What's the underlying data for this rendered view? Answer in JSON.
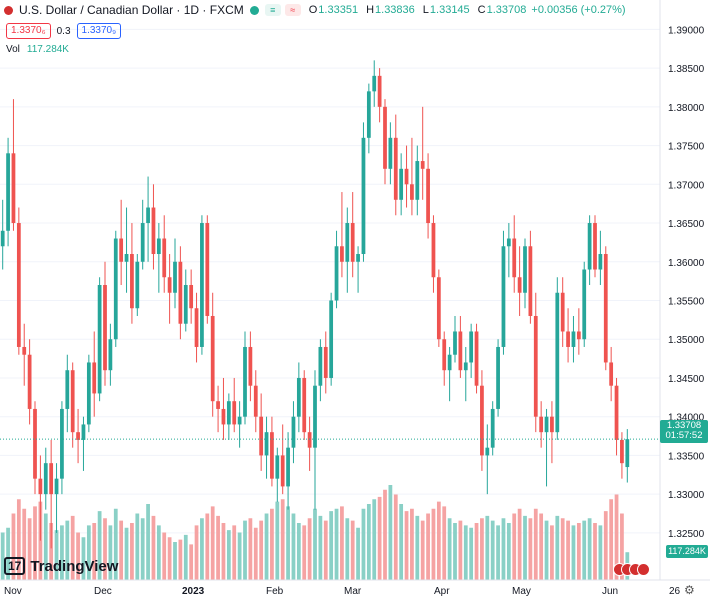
{
  "legend": {
    "title": "U.S. Dollar / Canadian Dollar · 1D · FXCM",
    "o_label": "O",
    "o_value": "1.33351",
    "h_label": "H",
    "h_value": "1.33836",
    "l_label": "L",
    "l_value": "1.33145",
    "c_label": "C",
    "c_value": "1.33708",
    "change": "+0.00356 (+0.27%)",
    "sell_price": "1.3370₆",
    "spread": "0.3",
    "buy_price": "1.3370₉",
    "vol_label": "Vol",
    "vol_value": "117.284K",
    "sell_chip": "≡",
    "buy_chip": "≈"
  },
  "price_axis": {
    "labels": [
      "1.39000",
      "1.38500",
      "1.38000",
      "1.37500",
      "1.37000",
      "1.36500",
      "1.36000",
      "1.35500",
      "1.35000",
      "1.34500",
      "1.34000",
      "1.33500",
      "1.33000",
      "1.32500"
    ],
    "current_price": "1.33708",
    "countdown": "01:57:52",
    "volume_tag": "117.284K"
  },
  "time_axis": {
    "labels": [
      "Nov",
      "Dec",
      "2023",
      "Feb",
      "Mar",
      "Apr",
      "May",
      "Jun",
      "26"
    ]
  },
  "branding": {
    "logo_mark": "17",
    "logo_text": "TradingView"
  },
  "colors": {
    "up": "#26a69a",
    "down": "#ef5350",
    "up_volume": "#8ad0c6",
    "down_volume": "#f5a3a3",
    "accent": "#22ab94"
  },
  "chart_data": {
    "type": "candlestick",
    "symbol": "USDCAD",
    "interval": "1D",
    "ylim": [
      1.3215,
      1.3925
    ],
    "candles": [
      [
        1.362,
        1.368,
        1.359,
        1.364,
        200
      ],
      [
        1.364,
        1.376,
        1.362,
        1.374,
        220
      ],
      [
        1.374,
        1.381,
        1.364,
        1.365,
        280
      ],
      [
        1.365,
        1.367,
        1.348,
        1.349,
        340
      ],
      [
        1.349,
        1.352,
        1.344,
        1.348,
        300
      ],
      [
        1.348,
        1.35,
        1.339,
        1.341,
        260
      ],
      [
        1.341,
        1.342,
        1.33,
        1.332,
        310
      ],
      [
        1.332,
        1.335,
        1.324,
        1.33,
        330
      ],
      [
        1.33,
        1.336,
        1.328,
        1.334,
        280
      ],
      [
        1.334,
        1.337,
        1.323,
        1.33,
        240
      ],
      [
        1.33,
        1.334,
        1.325,
        1.332,
        210
      ],
      [
        1.332,
        1.342,
        1.33,
        1.341,
        230
      ],
      [
        1.341,
        1.348,
        1.338,
        1.346,
        250
      ],
      [
        1.346,
        1.347,
        1.336,
        1.338,
        270
      ],
      [
        1.338,
        1.341,
        1.334,
        1.337,
        200
      ],
      [
        1.337,
        1.34,
        1.333,
        1.339,
        180
      ],
      [
        1.339,
        1.348,
        1.338,
        1.347,
        230
      ],
      [
        1.347,
        1.351,
        1.34,
        1.343,
        240
      ],
      [
        1.343,
        1.358,
        1.342,
        1.357,
        290
      ],
      [
        1.357,
        1.36,
        1.344,
        1.346,
        260
      ],
      [
        1.346,
        1.352,
        1.344,
        1.35,
        230
      ],
      [
        1.35,
        1.364,
        1.349,
        1.363,
        300
      ],
      [
        1.363,
        1.368,
        1.357,
        1.36,
        250
      ],
      [
        1.36,
        1.367,
        1.356,
        1.361,
        220
      ],
      [
        1.361,
        1.365,
        1.352,
        1.354,
        240
      ],
      [
        1.354,
        1.361,
        1.353,
        1.36,
        280
      ],
      [
        1.36,
        1.368,
        1.359,
        1.365,
        260
      ],
      [
        1.365,
        1.371,
        1.36,
        1.367,
        320
      ],
      [
        1.367,
        1.37,
        1.359,
        1.361,
        270
      ],
      [
        1.361,
        1.365,
        1.356,
        1.363,
        230
      ],
      [
        1.363,
        1.366,
        1.356,
        1.358,
        200
      ],
      [
        1.358,
        1.361,
        1.352,
        1.356,
        180
      ],
      [
        1.356,
        1.363,
        1.354,
        1.36,
        160
      ],
      [
        1.36,
        1.362,
        1.35,
        1.352,
        170
      ],
      [
        1.352,
        1.359,
        1.351,
        1.357,
        190
      ],
      [
        1.357,
        1.359,
        1.352,
        1.354,
        150
      ],
      [
        1.354,
        1.356,
        1.347,
        1.349,
        230
      ],
      [
        1.349,
        1.366,
        1.348,
        1.365,
        260
      ],
      [
        1.365,
        1.366,
        1.352,
        1.353,
        280
      ],
      [
        1.353,
        1.356,
        1.34,
        1.342,
        310
      ],
      [
        1.342,
        1.344,
        1.338,
        1.341,
        270
      ],
      [
        1.341,
        1.345,
        1.337,
        1.339,
        240
      ],
      [
        1.339,
        1.343,
        1.337,
        1.342,
        210
      ],
      [
        1.342,
        1.345,
        1.338,
        1.339,
        230
      ],
      [
        1.339,
        1.342,
        1.336,
        1.34,
        200
      ],
      [
        1.34,
        1.351,
        1.339,
        1.349,
        250
      ],
      [
        1.349,
        1.351,
        1.342,
        1.344,
        260
      ],
      [
        1.344,
        1.346,
        1.338,
        1.34,
        220
      ],
      [
        1.34,
        1.343,
        1.333,
        1.335,
        250
      ],
      [
        1.335,
        1.34,
        1.332,
        1.338,
        280
      ],
      [
        1.338,
        1.34,
        1.331,
        1.332,
        300
      ],
      [
        1.332,
        1.336,
        1.329,
        1.335,
        330
      ],
      [
        1.335,
        1.339,
        1.33,
        1.331,
        340
      ],
      [
        1.331,
        1.338,
        1.328,
        1.336,
        310
      ],
      [
        1.336,
        1.342,
        1.334,
        1.34,
        280
      ],
      [
        1.34,
        1.347,
        1.338,
        1.345,
        240
      ],
      [
        1.345,
        1.346,
        1.337,
        1.338,
        230
      ],
      [
        1.338,
        1.34,
        1.333,
        1.336,
        260
      ],
      [
        1.336,
        1.346,
        1.328,
        1.344,
        300
      ],
      [
        1.344,
        1.35,
        1.342,
        1.349,
        270
      ],
      [
        1.349,
        1.351,
        1.343,
        1.345,
        250
      ],
      [
        1.345,
        1.356,
        1.344,
        1.355,
        290
      ],
      [
        1.355,
        1.364,
        1.354,
        1.362,
        300
      ],
      [
        1.362,
        1.369,
        1.358,
        1.36,
        310
      ],
      [
        1.36,
        1.367,
        1.356,
        1.365,
        260
      ],
      [
        1.365,
        1.369,
        1.358,
        1.36,
        250
      ],
      [
        1.36,
        1.362,
        1.356,
        1.361,
        220
      ],
      [
        1.361,
        1.378,
        1.36,
        1.376,
        300
      ],
      [
        1.376,
        1.383,
        1.374,
        1.382,
        320
      ],
      [
        1.382,
        1.386,
        1.38,
        1.384,
        340
      ],
      [
        1.384,
        1.385,
        1.378,
        1.38,
        350
      ],
      [
        1.38,
        1.381,
        1.37,
        1.372,
        380
      ],
      [
        1.372,
        1.378,
        1.37,
        1.376,
        400
      ],
      [
        1.376,
        1.379,
        1.366,
        1.368,
        360
      ],
      [
        1.368,
        1.374,
        1.366,
        1.372,
        320
      ],
      [
        1.372,
        1.375,
        1.367,
        1.37,
        290
      ],
      [
        1.37,
        1.376,
        1.366,
        1.368,
        300
      ],
      [
        1.368,
        1.375,
        1.366,
        1.373,
        270
      ],
      [
        1.373,
        1.38,
        1.368,
        1.372,
        250
      ],
      [
        1.372,
        1.374,
        1.363,
        1.365,
        280
      ],
      [
        1.365,
        1.366,
        1.356,
        1.358,
        300
      ],
      [
        1.358,
        1.359,
        1.349,
        1.35,
        330
      ],
      [
        1.35,
        1.351,
        1.344,
        1.346,
        310
      ],
      [
        1.346,
        1.349,
        1.342,
        1.348,
        260
      ],
      [
        1.348,
        1.353,
        1.347,
        1.351,
        240
      ],
      [
        1.351,
        1.353,
        1.345,
        1.346,
        250
      ],
      [
        1.346,
        1.349,
        1.342,
        1.347,
        230
      ],
      [
        1.347,
        1.352,
        1.345,
        1.351,
        220
      ],
      [
        1.351,
        1.352,
        1.343,
        1.344,
        240
      ],
      [
        1.344,
        1.346,
        1.333,
        1.335,
        260
      ],
      [
        1.335,
        1.339,
        1.33,
        1.336,
        270
      ],
      [
        1.336,
        1.342,
        1.335,
        1.341,
        250
      ],
      [
        1.341,
        1.35,
        1.34,
        1.349,
        230
      ],
      [
        1.349,
        1.364,
        1.348,
        1.362,
        260
      ],
      [
        1.362,
        1.365,
        1.358,
        1.363,
        240
      ],
      [
        1.363,
        1.366,
        1.356,
        1.358,
        280
      ],
      [
        1.358,
        1.362,
        1.353,
        1.356,
        300
      ],
      [
        1.356,
        1.363,
        1.354,
        1.362,
        270
      ],
      [
        1.362,
        1.364,
        1.352,
        1.353,
        260
      ],
      [
        1.353,
        1.356,
        1.338,
        1.34,
        300
      ],
      [
        1.34,
        1.342,
        1.336,
        1.338,
        280
      ],
      [
        1.338,
        1.341,
        1.331,
        1.34,
        250
      ],
      [
        1.34,
        1.342,
        1.334,
        1.338,
        230
      ],
      [
        1.338,
        1.358,
        1.337,
        1.356,
        270
      ],
      [
        1.356,
        1.358,
        1.349,
        1.351,
        260
      ],
      [
        1.351,
        1.354,
        1.347,
        1.349,
        250
      ],
      [
        1.349,
        1.353,
        1.347,
        1.351,
        230
      ],
      [
        1.351,
        1.354,
        1.348,
        1.35,
        240
      ],
      [
        1.35,
        1.36,
        1.349,
        1.359,
        250
      ],
      [
        1.359,
        1.366,
        1.357,
        1.365,
        260
      ],
      [
        1.365,
        1.366,
        1.358,
        1.359,
        240
      ],
      [
        1.359,
        1.364,
        1.357,
        1.361,
        230
      ],
      [
        1.361,
        1.362,
        1.346,
        1.347,
        290
      ],
      [
        1.347,
        1.349,
        1.342,
        1.344,
        340
      ],
      [
        1.344,
        1.345,
        1.335,
        1.337,
        360
      ],
      [
        1.337,
        1.338,
        1.332,
        1.334,
        280
      ],
      [
        1.3335,
        1.3384,
        1.3315,
        1.3371,
        117
      ]
    ]
  }
}
